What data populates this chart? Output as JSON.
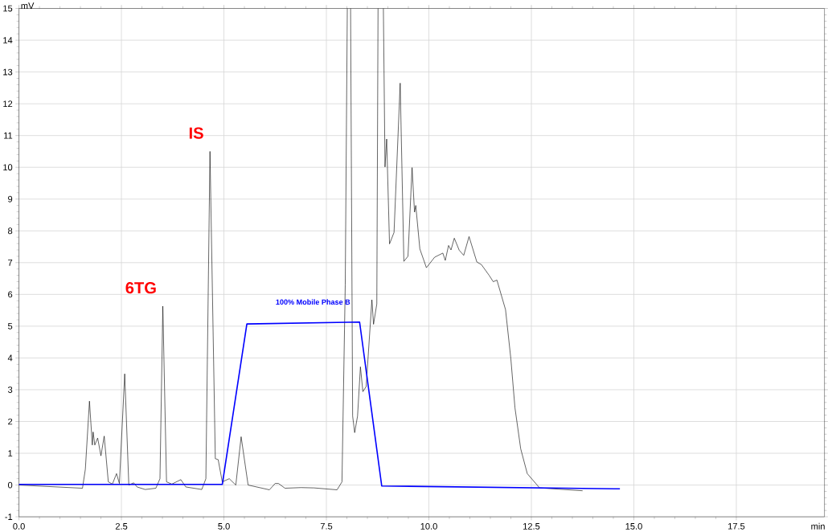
{
  "chart_data": {
    "type": "line",
    "xlabel": "min",
    "ylabel": "mV",
    "xlim": [
      0,
      19.65
    ],
    "ylim": [
      -1,
      15
    ],
    "xticks": [
      {
        "value": 0,
        "label": "0.0"
      },
      {
        "value": 2.5,
        "label": "2.5"
      },
      {
        "value": 5,
        "label": "5.0"
      },
      {
        "value": 7.5,
        "label": "7.5"
      },
      {
        "value": 10,
        "label": "10.0"
      },
      {
        "value": 12.5,
        "label": "12.5"
      },
      {
        "value": 15,
        "label": "15.0"
      },
      {
        "value": 17.5,
        "label": "17.5"
      }
    ],
    "yticks": [
      -1,
      0,
      1,
      2,
      3,
      4,
      5,
      6,
      7,
      8,
      9,
      10,
      11,
      12,
      13,
      14,
      15
    ],
    "grid": true,
    "marker": "none",
    "line_style": "solid",
    "annotations": [
      {
        "text": "6TG",
        "x": 3.51,
        "y": 5.63
      },
      {
        "text": "IS",
        "x": 4.66,
        "y": 10.5
      }
    ],
    "series": [
      {
        "color": "#000000",
        "x": [
          0,
          1.55,
          1.62,
          1.72,
          1.79,
          1.81,
          1.85,
          1.92,
          2.0,
          2.08,
          2.18,
          2.28,
          2.38,
          2.45,
          2.58,
          2.68,
          2.8,
          2.88,
          3.08,
          3.34,
          3.44,
          3.51,
          3.6,
          3.73,
          3.95,
          4.07,
          4.46,
          4.56,
          4.66,
          4.79,
          4.86,
          4.96,
          5.13,
          5.29,
          5.42,
          5.59,
          6.11,
          6.25,
          6.33,
          6.49,
          6.88,
          7.2,
          7.76,
          7.88,
          7.96,
          8.01,
          8.05,
          8.09,
          8.14,
          8.19,
          8.26,
          8.33,
          8.39,
          8.47,
          8.61,
          8.65,
          8.73,
          8.76,
          8.82,
          8.89,
          8.93,
          8.97,
          9.04,
          9.15,
          9.3,
          9.39,
          9.49,
          9.59,
          9.65,
          9.68,
          9.78,
          9.94,
          10.14,
          10.34,
          10.4,
          10.48,
          10.54,
          10.62,
          10.74,
          10.85,
          10.98,
          11.17,
          11.28,
          11.47,
          11.57,
          11.66,
          11.87,
          12.0,
          12.1,
          12.24,
          12.4,
          12.7,
          13.75
        ],
        "values": [
          0.0,
          -0.1,
          0.5,
          2.64,
          1.26,
          1.67,
          1.26,
          1.48,
          0.92,
          1.54,
          0.1,
          0.03,
          0.36,
          0.05,
          3.5,
          0.0,
          0.07,
          -0.06,
          -0.14,
          -0.1,
          0.2,
          5.63,
          0.1,
          0.03,
          0.17,
          -0.06,
          -0.14,
          0.2,
          10.5,
          0.83,
          0.8,
          0.1,
          0.2,
          0.0,
          1.52,
          0.0,
          -0.15,
          0.05,
          0.05,
          -0.1,
          -0.08,
          -0.09,
          -0.15,
          0.1,
          6.3,
          15,
          null,
          15,
          2.17,
          1.65,
          2.17,
          3.72,
          2.94,
          3.1,
          5.83,
          5.06,
          5.7,
          15,
          null,
          15,
          10.01,
          10.89,
          7.59,
          7.95,
          12.65,
          7.04,
          7.2,
          9.99,
          8.59,
          8.8,
          7.43,
          6.84,
          7.17,
          7.3,
          7.07,
          7.54,
          7.4,
          7.77,
          7.39,
          7.23,
          7.82,
          7.02,
          6.94,
          6.6,
          6.4,
          6.45,
          5.52,
          3.97,
          2.43,
          1.14,
          0.36,
          -0.09,
          -0.18
        ]
      },
      {
        "name": "100% Mobile Phase B",
        "color": "#0000ff",
        "x": [
          0,
          4.96,
          5.56,
          8.31,
          8.85,
          14.66
        ],
        "values": [
          0.02,
          0.02,
          5.07,
          5.13,
          -0.03,
          -0.12
        ]
      }
    ]
  }
}
